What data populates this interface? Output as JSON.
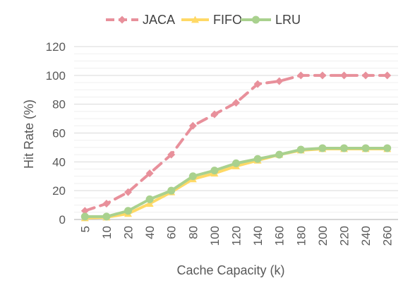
{
  "chart_data": {
    "type": "line",
    "title": "",
    "xlabel": "Cache Capacity (k)",
    "ylabel": "Hit Rate (%)",
    "ylim": [
      0,
      120
    ],
    "yticks": [
      "0",
      "20",
      "40",
      "60",
      "80",
      "100",
      "120"
    ],
    "categories": [
      "5",
      "10",
      "20",
      "40",
      "60",
      "80",
      "100",
      "120",
      "140",
      "160",
      "180",
      "200",
      "220",
      "240",
      "260"
    ],
    "grid": "horizontal",
    "legend": "top",
    "series": [
      {
        "name": "JACA",
        "color": "#e8909b",
        "style": "dashed",
        "marker": "diamond",
        "values": [
          6,
          11,
          19,
          32,
          45,
          65,
          73,
          81,
          94,
          96,
          100,
          100,
          100,
          100,
          100
        ]
      },
      {
        "name": "FIFO",
        "color": "#ffd966",
        "style": "solid",
        "marker": "triangle",
        "values": [
          1,
          1.5,
          4,
          11,
          19,
          28,
          32,
          37,
          41,
          45,
          48,
          49,
          49,
          49,
          49
        ]
      },
      {
        "name": "LRU",
        "color": "#a9d18e",
        "style": "solid",
        "marker": "circle",
        "values": [
          2,
          2,
          6,
          14,
          20,
          30,
          34,
          39,
          42,
          45,
          48.5,
          49.5,
          49.5,
          49.5,
          49.5
        ]
      }
    ]
  }
}
